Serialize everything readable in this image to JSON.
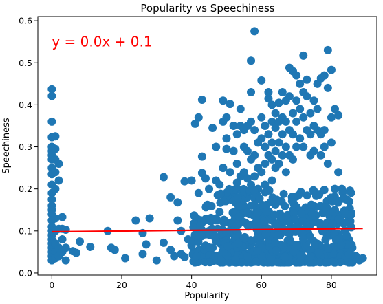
{
  "chart_data": {
    "type": "scatter",
    "title": "Popularity vs Speechiness",
    "xlabel": "Popularity",
    "ylabel": "Speechiness",
    "xlim": [
      -4,
      93
    ],
    "ylim": [
      -0.005,
      0.61
    ],
    "xticks": [
      0,
      20,
      40,
      60,
      80
    ],
    "yticks": [
      0.0,
      0.1,
      0.2,
      0.3,
      0.4,
      0.5,
      0.6
    ],
    "xtick_labels": [
      "0",
      "20",
      "40",
      "60",
      "80"
    ],
    "ytick_labels": [
      "0.0",
      "0.1",
      "0.2",
      "0.3",
      "0.4",
      "0.5",
      "0.6"
    ],
    "grid": false,
    "annotation": {
      "text": "y = 0.0x + 0.1",
      "color": "#ff0000",
      "x": 0,
      "y": 0.55
    },
    "colors": {
      "points": "#1f77b4",
      "fit_line": "#ff0000"
    },
    "fit_line": {
      "x": [
        0,
        89
      ],
      "y": [
        0.098,
        0.106
      ]
    },
    "series": [
      {
        "type": "scatter",
        "points": [
          [
            0,
            0.437
          ],
          [
            0,
            0.421
          ],
          [
            0,
            0.36
          ],
          [
            0,
            0.323
          ],
          [
            0,
            0.3
          ],
          [
            0,
            0.29
          ],
          [
            0,
            0.28
          ],
          [
            0,
            0.27
          ],
          [
            0,
            0.25
          ],
          [
            0,
            0.235
          ],
          [
            0,
            0.21
          ],
          [
            0,
            0.19
          ],
          [
            0,
            0.175
          ],
          [
            0,
            0.16
          ],
          [
            0,
            0.15
          ],
          [
            0,
            0.14
          ],
          [
            0,
            0.125
          ],
          [
            0,
            0.11
          ],
          [
            0,
            0.1
          ],
          [
            0,
            0.09
          ],
          [
            0,
            0.08
          ],
          [
            0,
            0.07
          ],
          [
            0,
            0.06
          ],
          [
            0,
            0.05
          ],
          [
            0,
            0.04
          ],
          [
            0,
            0.03
          ],
          [
            1,
            0.325
          ],
          [
            1,
            0.295
          ],
          [
            1,
            0.27
          ],
          [
            1,
            0.24
          ],
          [
            1,
            0.2
          ],
          [
            1,
            0.13
          ],
          [
            1,
            0.1
          ],
          [
            1,
            0.07
          ],
          [
            1,
            0.05
          ],
          [
            1,
            0.035
          ],
          [
            2,
            0.26
          ],
          [
            2,
            0.22
          ],
          [
            2,
            0.105
          ],
          [
            2,
            0.06
          ],
          [
            2,
            0.04
          ],
          [
            3,
            0.133
          ],
          [
            3,
            0.105
          ],
          [
            3,
            0.08
          ],
          [
            3,
            0.05
          ],
          [
            4,
            0.103
          ],
          [
            4,
            0.06
          ],
          [
            4,
            0.03
          ],
          [
            6,
            0.052
          ],
          [
            7,
            0.048
          ],
          [
            8,
            0.075
          ],
          [
            11,
            0.062
          ],
          [
            16,
            0.1
          ],
          [
            17,
            0.06
          ],
          [
            18,
            0.055
          ],
          [
            21,
            0.035
          ],
          [
            24,
            0.125
          ],
          [
            26,
            0.095
          ],
          [
            26,
            0.045
          ],
          [
            27,
            0.068
          ],
          [
            28,
            0.13
          ],
          [
            30,
            0.03
          ],
          [
            32,
            0.228
          ],
          [
            32,
            0.072
          ],
          [
            34,
            0.18
          ],
          [
            34,
            0.055
          ],
          [
            35,
            0.04
          ],
          [
            36,
            0.168
          ],
          [
            36,
            0.125
          ],
          [
            37,
            0.1
          ],
          [
            37,
            0.045
          ],
          [
            38,
            0.038
          ],
          [
            38,
            0.218
          ],
          [
            39,
            0.08
          ],
          [
            40,
            0.065
          ],
          [
            40,
            0.22
          ],
          [
            41,
            0.355
          ],
          [
            41,
            0.045
          ],
          [
            42,
            0.37
          ],
          [
            42,
            0.19
          ],
          [
            42,
            0.04
          ],
          [
            43,
            0.412
          ],
          [
            43,
            0.277
          ],
          [
            43,
            0.238
          ],
          [
            43,
            0.12
          ],
          [
            44,
            0.225
          ],
          [
            44,
            0.065
          ],
          [
            45,
            0.2
          ],
          [
            45,
            0.1
          ],
          [
            46,
            0.06
          ],
          [
            46,
            0.345
          ],
          [
            47,
            0.3
          ],
          [
            47,
            0.22
          ],
          [
            47,
            0.13
          ],
          [
            48,
            0.21
          ],
          [
            48,
            0.035
          ],
          [
            48,
            0.145
          ],
          [
            49,
            0.36
          ],
          [
            49,
            0.41
          ],
          [
            49,
            0.25
          ],
          [
            50,
            0.37
          ],
          [
            50,
            0.32
          ],
          [
            50,
            0.295
          ],
          [
            50,
            0.19
          ],
          [
            51,
            0.402
          ],
          [
            51,
            0.24
          ],
          [
            51,
            0.07
          ],
          [
            52,
            0.35
          ],
          [
            52,
            0.29
          ],
          [
            52,
            0.19
          ],
          [
            52,
            0.12
          ],
          [
            53,
            0.33
          ],
          [
            53,
            0.26
          ],
          [
            53,
            0.215
          ],
          [
            53,
            0.165
          ],
          [
            54,
            0.39
          ],
          [
            54,
            0.35
          ],
          [
            54,
            0.23
          ],
          [
            54,
            0.15
          ],
          [
            55,
            0.34
          ],
          [
            55,
            0.3
          ],
          [
            55,
            0.24
          ],
          [
            55,
            0.195
          ],
          [
            56,
            0.35
          ],
          [
            56,
            0.29
          ],
          [
            56,
            0.225
          ],
          [
            56,
            0.18
          ],
          [
            57,
            0.43
          ],
          [
            57,
            0.505
          ],
          [
            57,
            0.36
          ],
          [
            57,
            0.27
          ],
          [
            57,
            0.21
          ],
          [
            58,
            0.575
          ],
          [
            58,
            0.34
          ],
          [
            58,
            0.28
          ],
          [
            58,
            0.23
          ],
          [
            58,
            0.16
          ],
          [
            59,
            0.31
          ],
          [
            59,
            0.25
          ],
          [
            59,
            0.2
          ],
          [
            60,
            0.458
          ],
          [
            60,
            0.37
          ],
          [
            60,
            0.32
          ],
          [
            60,
            0.24
          ],
          [
            61,
            0.35
          ],
          [
            61,
            0.3
          ],
          [
            61,
            0.26
          ],
          [
            61,
            0.21
          ],
          [
            62,
            0.415
          ],
          [
            62,
            0.43
          ],
          [
            62,
            0.33
          ],
          [
            62,
            0.28
          ],
          [
            63,
            0.4
          ],
          [
            63,
            0.36
          ],
          [
            63,
            0.31
          ],
          [
            63,
            0.27
          ],
          [
            63,
            0.22
          ],
          [
            64,
            0.38
          ],
          [
            64,
            0.345
          ],
          [
            64,
            0.29
          ],
          [
            64,
            0.25
          ],
          [
            65,
            0.405
          ],
          [
            65,
            0.36
          ],
          [
            65,
            0.31
          ],
          [
            65,
            0.26
          ],
          [
            66,
            0.43
          ],
          [
            66,
            0.37
          ],
          [
            66,
            0.33
          ],
          [
            66,
            0.28
          ],
          [
            67,
            0.41
          ],
          [
            67,
            0.36
          ],
          [
            67,
            0.3
          ],
          [
            67,
            0.24
          ],
          [
            68,
            0.488
          ],
          [
            68,
            0.42
          ],
          [
            68,
            0.34
          ],
          [
            68,
            0.28
          ],
          [
            69,
            0.48
          ],
          [
            69,
            0.38
          ],
          [
            69,
            0.33
          ],
          [
            69,
            0.27
          ],
          [
            70,
            0.47
          ],
          [
            70,
            0.41
          ],
          [
            70,
            0.36
          ],
          [
            70,
            0.3
          ],
          [
            71,
            0.45
          ],
          [
            71,
            0.39
          ],
          [
            71,
            0.32
          ],
          [
            72,
            0.517
          ],
          [
            72,
            0.43
          ],
          [
            72,
            0.37
          ],
          [
            72,
            0.3
          ],
          [
            73,
            0.46
          ],
          [
            73,
            0.42
          ],
          [
            73,
            0.34
          ],
          [
            74,
            0.38
          ],
          [
            74,
            0.33
          ],
          [
            74,
            0.28
          ],
          [
            75,
            0.41
          ],
          [
            75,
            0.35
          ],
          [
            75,
            0.29
          ],
          [
            76,
            0.45
          ],
          [
            76,
            0.39
          ],
          [
            76,
            0.34
          ],
          [
            77,
            0.463
          ],
          [
            77,
            0.33
          ],
          [
            77,
            0.28
          ],
          [
            78,
            0.47
          ],
          [
            78,
            0.34
          ],
          [
            78,
            0.3
          ],
          [
            79,
            0.53
          ],
          [
            79,
            0.44
          ],
          [
            79,
            0.26
          ],
          [
            80,
            0.483
          ],
          [
            80,
            0.37
          ],
          [
            80,
            0.31
          ],
          [
            81,
            0.39
          ],
          [
            81,
            0.2
          ],
          [
            81,
            0.15
          ],
          [
            82,
            0.375
          ],
          [
            82,
            0.24
          ],
          [
            82,
            0.06
          ],
          [
            83,
            0.2
          ],
          [
            83,
            0.14
          ],
          [
            84,
            0.1
          ],
          [
            84,
            0.07
          ],
          [
            85,
            0.08
          ],
          [
            86,
            0.06
          ],
          [
            87,
            0.04
          ],
          [
            88,
            0.03
          ],
          [
            89,
            0.035
          ]
        ]
      }
    ],
    "dense_region": {
      "x_range": [
        40,
        86
      ],
      "y_range": [
        0.025,
        0.2
      ],
      "note": "heavily overlapping points"
    }
  }
}
